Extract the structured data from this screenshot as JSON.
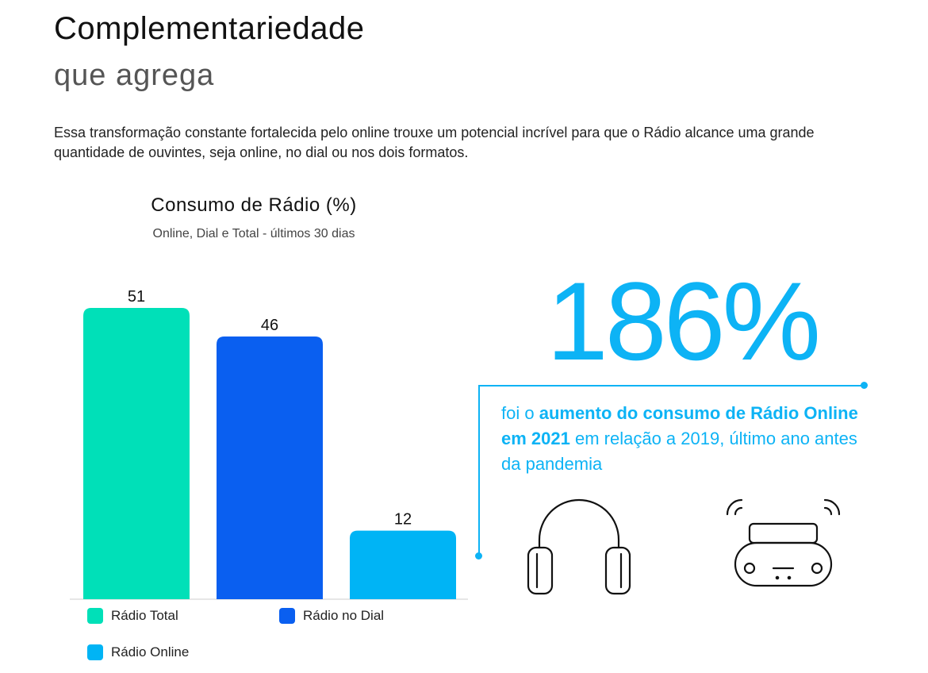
{
  "header": {
    "title": "Complementariedade",
    "subtitle": "que agrega",
    "intro": "Essa transformação constante fortalecida pelo online trouxe um potencial incrível para que o Rádio alcance uma grande quantidade de ouvintes, seja online, no dial ou nos dois formatos."
  },
  "chart_data": {
    "type": "bar",
    "title": "Consumo de Rádio (%)",
    "subtitle": "Online, Dial e Total - últimos 30 dias",
    "categories": [
      "Rádio Total",
      "Rádio no Dial",
      "Rádio Online"
    ],
    "values": [
      51,
      46,
      12
    ],
    "colors": [
      "#00e0b8",
      "#0a5ff0",
      "#00b4f5"
    ],
    "ylim": [
      0,
      51
    ],
    "grid": false,
    "legend": "bottom"
  },
  "callout": {
    "big_number": "186%",
    "text_pre": "foi o ",
    "text_bold": "aumento do consumo de Rádio Online em 2021",
    "text_post": " em relação a 2019, último ano antes da pandemia",
    "accent": "#0db3f5"
  },
  "icons": {
    "headphones": "headphones-icon",
    "radio": "boombox-radio-icon"
  }
}
